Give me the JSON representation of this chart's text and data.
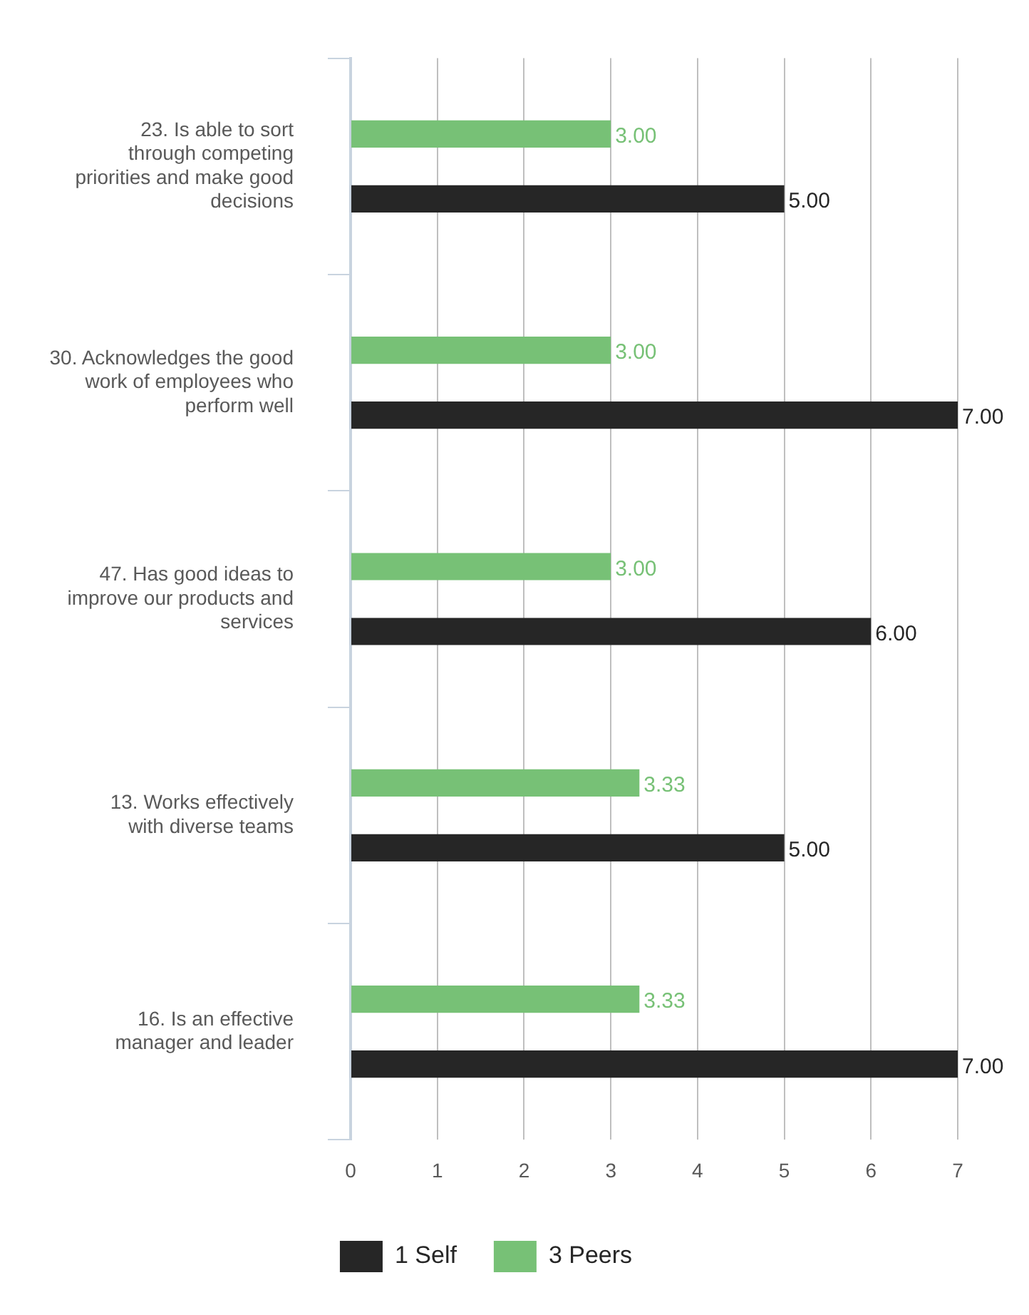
{
  "chart_data": {
    "type": "bar",
    "orientation": "horizontal",
    "categories": [
      "23. Is able to sort through competing priorities and make good decisions",
      "30. Acknowledges the good work of employees who perform well",
      "47. Has good ideas to improve our products and services",
      "13. Works effectively with diverse teams",
      "16. Is an effective manager and leader"
    ],
    "series": [
      {
        "name": "1 Self",
        "color": "#262626",
        "values": [
          5,
          7,
          6,
          5,
          7
        ],
        "value_labels": [
          "5.00",
          "7.00",
          "6.00",
          "5.00",
          "7.00"
        ]
      },
      {
        "name": "3 Peers",
        "color": "#77c176",
        "values": [
          3,
          3,
          3,
          3.33,
          3.33
        ],
        "value_labels": [
          "3.00",
          "3.00",
          "3.00",
          "3.33",
          "3.33"
        ]
      }
    ],
    "xlim": [
      0,
      7
    ],
    "xticks": [
      0,
      1,
      2,
      3,
      4,
      5,
      6,
      7
    ],
    "grid": "x",
    "legend": "bottom"
  }
}
